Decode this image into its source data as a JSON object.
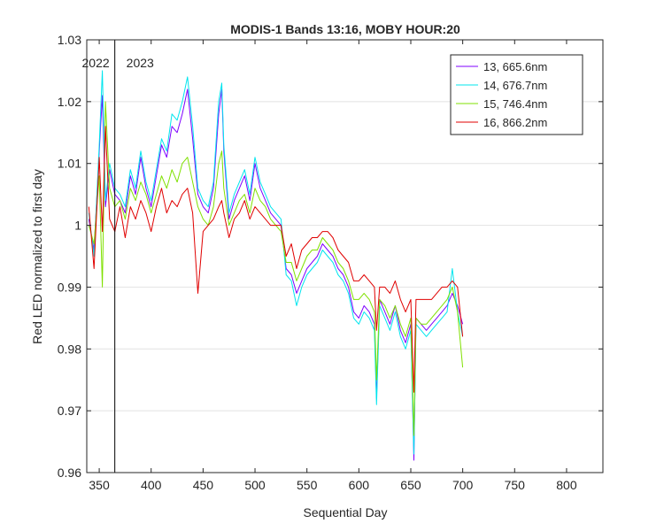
{
  "chart_data": {
    "type": "line",
    "title": "MODIS-1 Bands 13:16, MOBY HOUR:20",
    "xlabel": "Sequential Day",
    "ylabel": "Red LED normalized to first day",
    "xlim": [
      338,
      835
    ],
    "ylim": [
      0.96,
      1.03
    ],
    "xticks": [
      350,
      400,
      450,
      500,
      550,
      600,
      650,
      700,
      750,
      800
    ],
    "yticks": [
      0.96,
      0.97,
      0.98,
      0.99,
      1,
      1.01,
      1.02,
      1.03
    ],
    "ytick_labels": [
      "0.96",
      "0.97",
      "0.98",
      "0.99",
      "1",
      "1.01",
      "1.02",
      "1.03"
    ],
    "grid": "horizontal",
    "legend_position": "top-right",
    "year_marker": {
      "x": 365,
      "left_label": "2022",
      "right_label": "2023"
    },
    "series": [
      {
        "name": "13, 665.6nm",
        "color": "#7F00FF",
        "x": [
          340,
          345,
          350,
          353,
          356,
          360,
          365,
          370,
          375,
          380,
          385,
          390,
          395,
          400,
          405,
          410,
          415,
          420,
          425,
          430,
          435,
          440,
          445,
          450,
          455,
          460,
          465,
          468,
          470,
          475,
          480,
          485,
          490,
          495,
          500,
          505,
          510,
          515,
          520,
          525,
          530,
          535,
          540,
          545,
          550,
          555,
          560,
          565,
          570,
          575,
          580,
          585,
          590,
          595,
          600,
          605,
          610,
          615,
          617,
          620,
          625,
          630,
          635,
          640,
          645,
          650,
          653,
          655,
          660,
          665,
          670,
          675,
          680,
          685,
          690,
          695,
          700
        ],
        "y": [
          1.001,
          0.996,
          1.012,
          1.021,
          1.003,
          1.009,
          1.005,
          1.004,
          1.002,
          1.008,
          1.005,
          1.011,
          1.006,
          1.003,
          1.008,
          1.013,
          1.011,
          1.016,
          1.015,
          1.018,
          1.022,
          1.014,
          1.005,
          1.003,
          1.002,
          1.006,
          1.018,
          1.022,
          1.012,
          1.001,
          1.004,
          1.006,
          1.008,
          1.004,
          1.01,
          1.006,
          1.004,
          1.002,
          1.001,
          1.0,
          0.993,
          0.992,
          0.989,
          0.991,
          0.993,
          0.994,
          0.995,
          0.997,
          0.996,
          0.995,
          0.993,
          0.992,
          0.99,
          0.986,
          0.985,
          0.987,
          0.986,
          0.984,
          0.972,
          0.988,
          0.986,
          0.984,
          0.987,
          0.983,
          0.981,
          0.984,
          0.962,
          0.985,
          0.984,
          0.983,
          0.984,
          0.985,
          0.986,
          0.987,
          0.989,
          0.987,
          0.984
        ]
      },
      {
        "name": "14, 676.7nm",
        "color": "#00E5EE",
        "x": [
          340,
          345,
          350,
          353,
          356,
          360,
          365,
          370,
          375,
          380,
          385,
          390,
          395,
          400,
          405,
          410,
          415,
          420,
          425,
          430,
          435,
          440,
          445,
          450,
          455,
          460,
          465,
          468,
          470,
          475,
          480,
          485,
          490,
          495,
          500,
          505,
          510,
          515,
          520,
          525,
          530,
          535,
          540,
          545,
          550,
          555,
          560,
          565,
          570,
          575,
          580,
          585,
          590,
          595,
          600,
          605,
          610,
          615,
          617,
          620,
          625,
          630,
          635,
          640,
          645,
          650,
          653,
          655,
          660,
          665,
          670,
          675,
          680,
          685,
          690,
          695,
          700
        ],
        "y": [
          1.002,
          0.995,
          1.013,
          1.025,
          1.004,
          1.01,
          1.006,
          1.005,
          1.003,
          1.009,
          1.006,
          1.012,
          1.007,
          1.004,
          1.009,
          1.014,
          1.012,
          1.018,
          1.017,
          1.02,
          1.024,
          1.016,
          1.006,
          1.004,
          1.003,
          1.007,
          1.02,
          1.023,
          1.013,
          1.002,
          1.005,
          1.007,
          1.009,
          1.005,
          1.011,
          1.007,
          1.005,
          1.003,
          1.002,
          1.001,
          0.992,
          0.991,
          0.987,
          0.99,
          0.992,
          0.993,
          0.994,
          0.996,
          0.995,
          0.994,
          0.992,
          0.991,
          0.989,
          0.985,
          0.984,
          0.986,
          0.985,
          0.983,
          0.971,
          0.987,
          0.985,
          0.983,
          0.986,
          0.982,
          0.98,
          0.983,
          0.963,
          0.984,
          0.983,
          0.982,
          0.983,
          0.984,
          0.985,
          0.986,
          0.993,
          0.986,
          0.982
        ]
      },
      {
        "name": "15, 746.4nm",
        "color": "#7FE000",
        "x": [
          340,
          345,
          350,
          353,
          356,
          360,
          365,
          370,
          375,
          380,
          385,
          390,
          395,
          400,
          405,
          410,
          415,
          420,
          425,
          430,
          435,
          440,
          445,
          450,
          455,
          460,
          465,
          468,
          470,
          475,
          480,
          485,
          490,
          495,
          500,
          505,
          510,
          515,
          520,
          525,
          530,
          535,
          540,
          545,
          550,
          555,
          560,
          565,
          570,
          575,
          580,
          585,
          590,
          595,
          600,
          605,
          610,
          615,
          617,
          620,
          625,
          630,
          635,
          640,
          645,
          650,
          653,
          655,
          660,
          665,
          670,
          675,
          680,
          685,
          690,
          695,
          700
        ],
        "y": [
          1.0,
          0.997,
          1.008,
          0.99,
          1.02,
          1.006,
          1.003,
          1.004,
          1.001,
          1.006,
          1.004,
          1.007,
          1.005,
          1.002,
          1.005,
          1.008,
          1.006,
          1.009,
          1.007,
          1.01,
          1.011,
          1.007,
          1.003,
          1.001,
          1.0,
          1.003,
          1.01,
          1.012,
          1.006,
          1.0,
          1.002,
          1.004,
          1.005,
          1.002,
          1.006,
          1.004,
          1.003,
          1.001,
          1.0,
          0.999,
          0.994,
          0.994,
          0.991,
          0.993,
          0.995,
          0.996,
          0.996,
          0.998,
          0.997,
          0.996,
          0.994,
          0.993,
          0.991,
          0.988,
          0.988,
          0.989,
          0.988,
          0.986,
          0.975,
          0.988,
          0.987,
          0.985,
          0.987,
          0.984,
          0.982,
          0.985,
          0.966,
          0.985,
          0.984,
          0.984,
          0.985,
          0.986,
          0.987,
          0.988,
          0.99,
          0.986,
          0.977
        ]
      },
      {
        "name": "16, 866.2nm",
        "color": "#E00000",
        "x": [
          340,
          345,
          350,
          353,
          356,
          360,
          365,
          370,
          375,
          380,
          385,
          390,
          395,
          400,
          405,
          410,
          415,
          420,
          425,
          430,
          435,
          440,
          445,
          450,
          455,
          460,
          465,
          468,
          470,
          475,
          480,
          485,
          490,
          495,
          500,
          505,
          510,
          515,
          520,
          525,
          530,
          535,
          540,
          545,
          550,
          555,
          560,
          565,
          570,
          575,
          580,
          585,
          590,
          595,
          600,
          605,
          610,
          615,
          617,
          620,
          625,
          630,
          635,
          640,
          645,
          650,
          653,
          655,
          660,
          665,
          670,
          675,
          680,
          685,
          690,
          695,
          700
        ],
        "y": [
          1.003,
          0.993,
          1.011,
          0.999,
          1.016,
          1.001,
          0.999,
          1.003,
          0.998,
          1.003,
          1.001,
          1.004,
          1.002,
          0.999,
          1.003,
          1.006,
          1.002,
          1.004,
          1.003,
          1.005,
          1.006,
          1.002,
          0.989,
          0.999,
          1.0,
          1.001,
          1.003,
          1.004,
          1.002,
          0.998,
          1.001,
          1.002,
          1.004,
          1.001,
          1.003,
          1.002,
          1.001,
          1.0,
          1.0,
          1.0,
          0.995,
          0.997,
          0.993,
          0.996,
          0.997,
          0.998,
          0.998,
          0.999,
          0.999,
          0.998,
          0.996,
          0.995,
          0.994,
          0.991,
          0.991,
          0.992,
          0.991,
          0.99,
          0.983,
          0.99,
          0.99,
          0.989,
          0.991,
          0.988,
          0.986,
          0.988,
          0.973,
          0.988,
          0.988,
          0.988,
          0.988,
          0.989,
          0.99,
          0.99,
          0.991,
          0.99,
          0.982
        ]
      }
    ]
  }
}
